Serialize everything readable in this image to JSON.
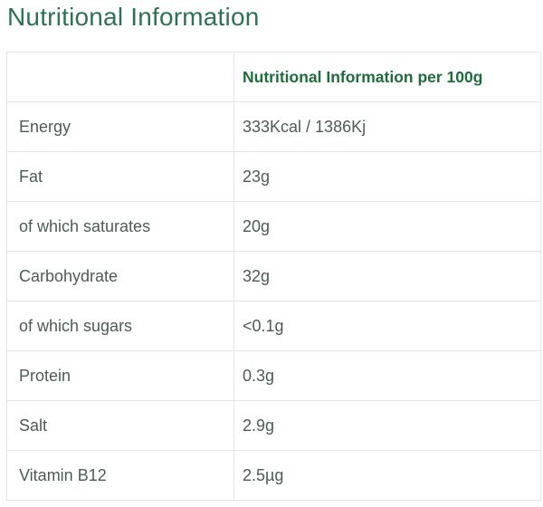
{
  "page_title": "Nutritional Information",
  "table": {
    "header": {
      "label_col": "",
      "value_col": "Nutritional Information per 100g"
    },
    "rows": [
      {
        "label": "Energy",
        "value": "333Kcal / 1386Kj"
      },
      {
        "label": "Fat",
        "value": "23g"
      },
      {
        "label": "of which saturates",
        "value": "20g"
      },
      {
        "label": "Carbohydrate",
        "value": "32g"
      },
      {
        "label": "of which sugars",
        "value": "<0.1g"
      },
      {
        "label": "Protein",
        "value": "0.3g"
      },
      {
        "label": "Salt",
        "value": "2.9g"
      },
      {
        "label": "Vitamin B12",
        "value": "2.5µg"
      }
    ]
  },
  "colors": {
    "title_green": "#2e7153",
    "header_green": "#1e6b3c",
    "body_text": "#4d5b57",
    "table_border": "#e5e5e5",
    "background": "#ffffff"
  }
}
